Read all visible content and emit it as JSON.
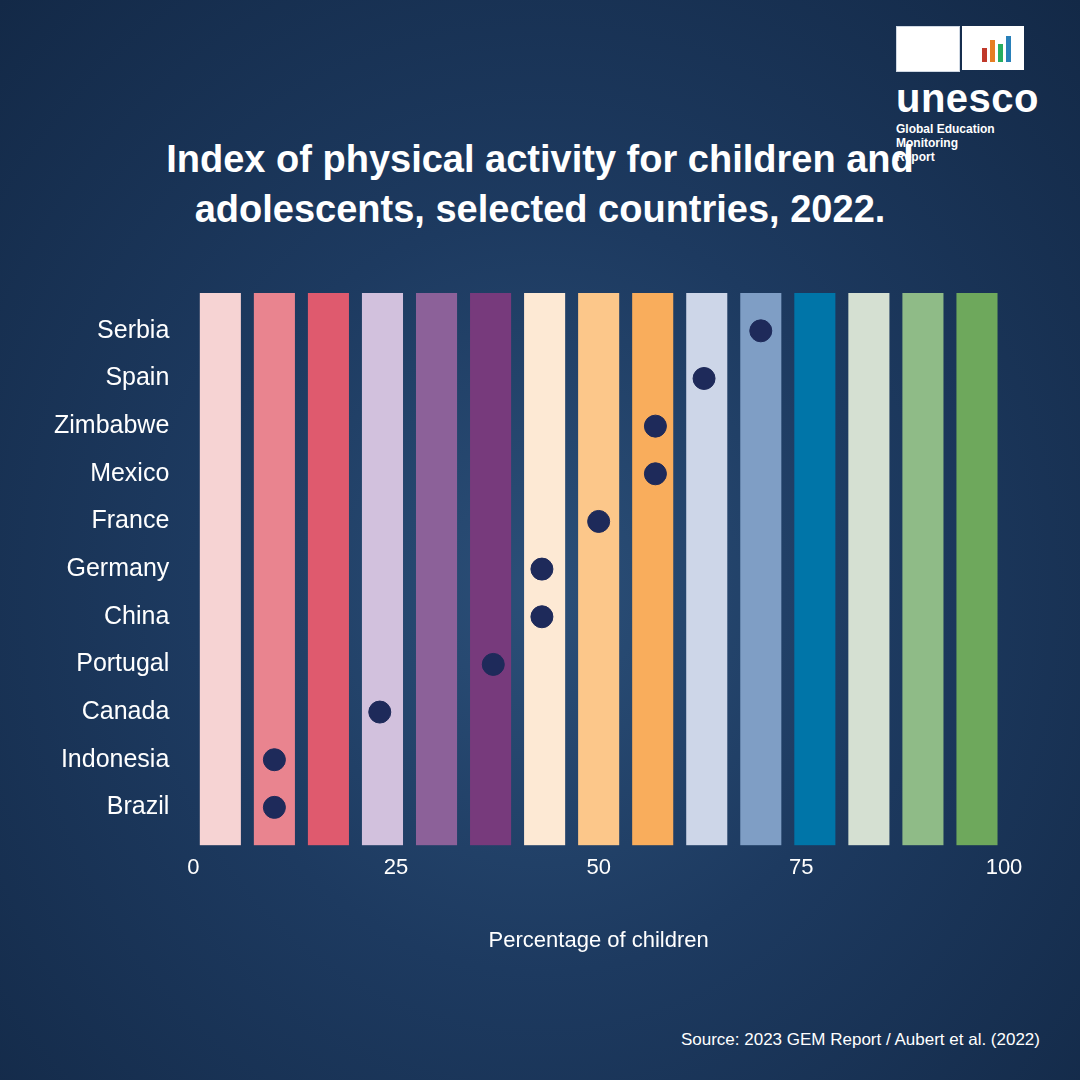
{
  "chart_data": {
    "type": "scatter",
    "title": "Index of physical activity for children and adolescents, selected countries, 2022.",
    "categories": [
      "Serbia",
      "Spain",
      "Zimbabwe",
      "Mexico",
      "France",
      "Germany",
      "China",
      "Portugal",
      "Canada",
      "Indonesia",
      "Brazil"
    ],
    "values": [
      70,
      63,
      57,
      57,
      50,
      43,
      43,
      37,
      23,
      10,
      10
    ],
    "color": "#1e2a5a",
    "orientation": "horizontal",
    "x_label": "Percentage of children",
    "xlim": [
      0,
      100
    ],
    "xticks": [
      0,
      25,
      50,
      75,
      100
    ],
    "grid": false,
    "marker": "circle",
    "source": "Source: 2023 GEM Report / Aubert et al. (2022)",
    "logo_name": "unesco",
    "logo_subtitle": "Global Education Monitoring Report"
  }
}
